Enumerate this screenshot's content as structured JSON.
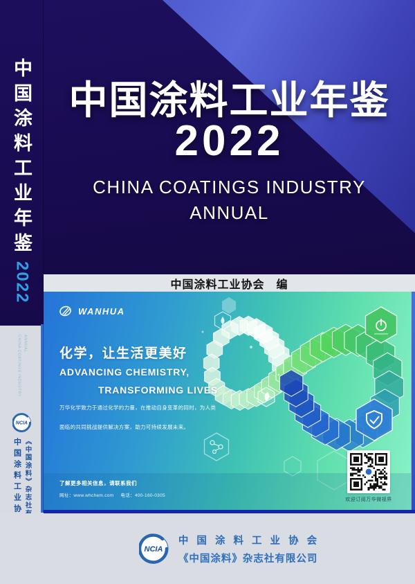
{
  "spine": {
    "title": "中国涂料工业年鉴",
    "year": "2022",
    "subtitle_line1": "CHINA COATINGS INDUSTRY",
    "subtitle_line2": "ANNUAL",
    "logo_text": "NCIA",
    "org": "中国涂料工业协会",
    "publisher": "《中国涂料》杂志社有限公司"
  },
  "cover": {
    "title": "中国涂料工业年鉴",
    "year": "2022",
    "subtitle_line1": "CHINA COATINGS INDUSTRY",
    "subtitle_line2": "ANNUAL",
    "editor_line": "中国涂料工业协会　编"
  },
  "ad": {
    "brand": "WANHUA",
    "slogan_cn": "化学，让生活更美好",
    "slogan_en_line1": "ADVANCING CHEMISTRY,",
    "slogan_en_line2": "TRANSFORMING LIVES",
    "body_line1": "万华化学致力于通过化学的力量，在推动自身变革的同时，为人类",
    "body_line2": "面临的共同挑战提供解决方案，助力可持续发展未来。",
    "contact_line": "了解更多相关信息，请联系我们",
    "website_label": "网址：www.whchem.com",
    "phone_label": "电话：400-160-0305",
    "qr_caption": "欢迎订阅万华微视界"
  },
  "footer": {
    "logo_text": "NCIA",
    "org": "中 国 涂 料 工 业 协 会",
    "publisher": "《中国涂料》杂志社有限公司"
  },
  "colors": {
    "cover_navy": "#190b50",
    "cover_light_blue": "#5b6be2",
    "spine_year_blue": "#2f9fe6",
    "ad_gradient_start": "#2474d8",
    "ad_gradient_end": "#8bf2c8",
    "divider_blue": "#1a22b0",
    "footer_text_blue": "#2e6cb5",
    "right_strip_blue": "#2a50c0"
  }
}
